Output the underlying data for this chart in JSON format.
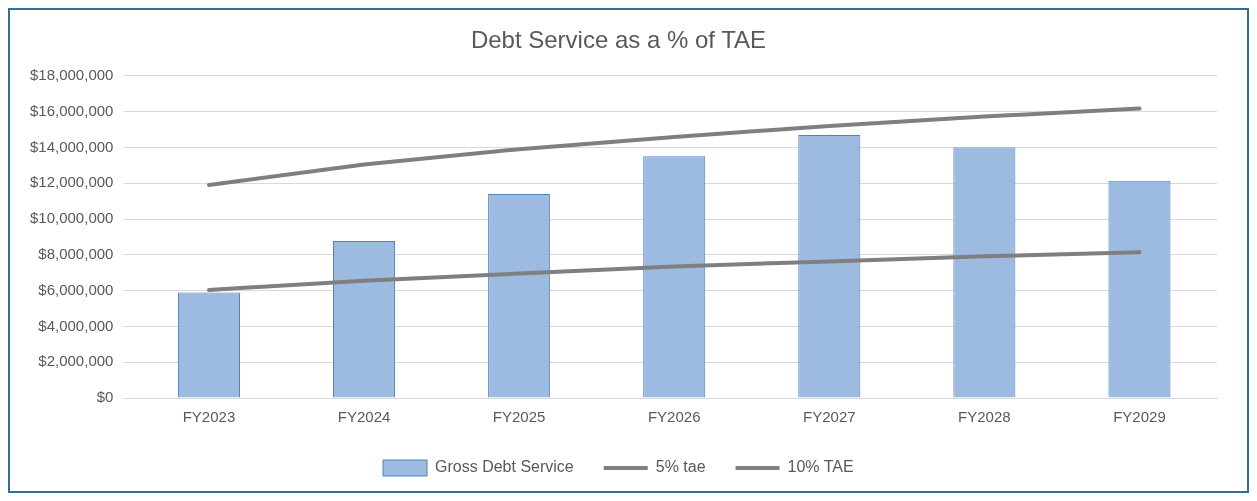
{
  "chart_data": {
    "type": "bar",
    "title": "Debt Service as a % of TAE",
    "categories": [
      "FY2023",
      "FY2024",
      "FY2025",
      "FY2026",
      "FY2027",
      "FY2028",
      "FY2029"
    ],
    "series": [
      {
        "name": "Gross Debt Service",
        "color": "#9dbbe0",
        "values": [
          5900000,
          8770000,
          11390000,
          13500000,
          14690000,
          14000000,
          12130000
        ]
      },
      {
        "name": "5% tae",
        "type": "line",
        "color": "#7f7f7f",
        "values": [
          6040000,
          6550000,
          6950000,
          7350000,
          7630000,
          7920000,
          8140000
        ]
      },
      {
        "name": "10% TAE",
        "type": "line",
        "color": "#7f7f7f",
        "values": [
          11900000,
          13040000,
          13900000,
          14580000,
          15200000,
          15720000,
          16170000
        ]
      }
    ],
    "ylim": [
      0,
      18000000
    ],
    "yticks": [
      {
        "value": 0,
        "label": "$0"
      },
      {
        "value": 2000000,
        "label": "$2,000,000"
      },
      {
        "value": 4000000,
        "label": "$4,000,000"
      },
      {
        "value": 6000000,
        "label": "$6,000,000"
      },
      {
        "value": 8000000,
        "label": "$8,000,000"
      },
      {
        "value": 10000000,
        "label": "$10,000,000"
      },
      {
        "value": 12000000,
        "label": "$12,000,000"
      },
      {
        "value": 14000000,
        "label": "$14,000,000"
      },
      {
        "value": 16000000,
        "label": "$16,000,000"
      },
      {
        "value": 18000000,
        "label": "$18,000,000"
      }
    ],
    "grid": "y",
    "legend": "bottom",
    "marker": "none",
    "line_style": "solid"
  }
}
